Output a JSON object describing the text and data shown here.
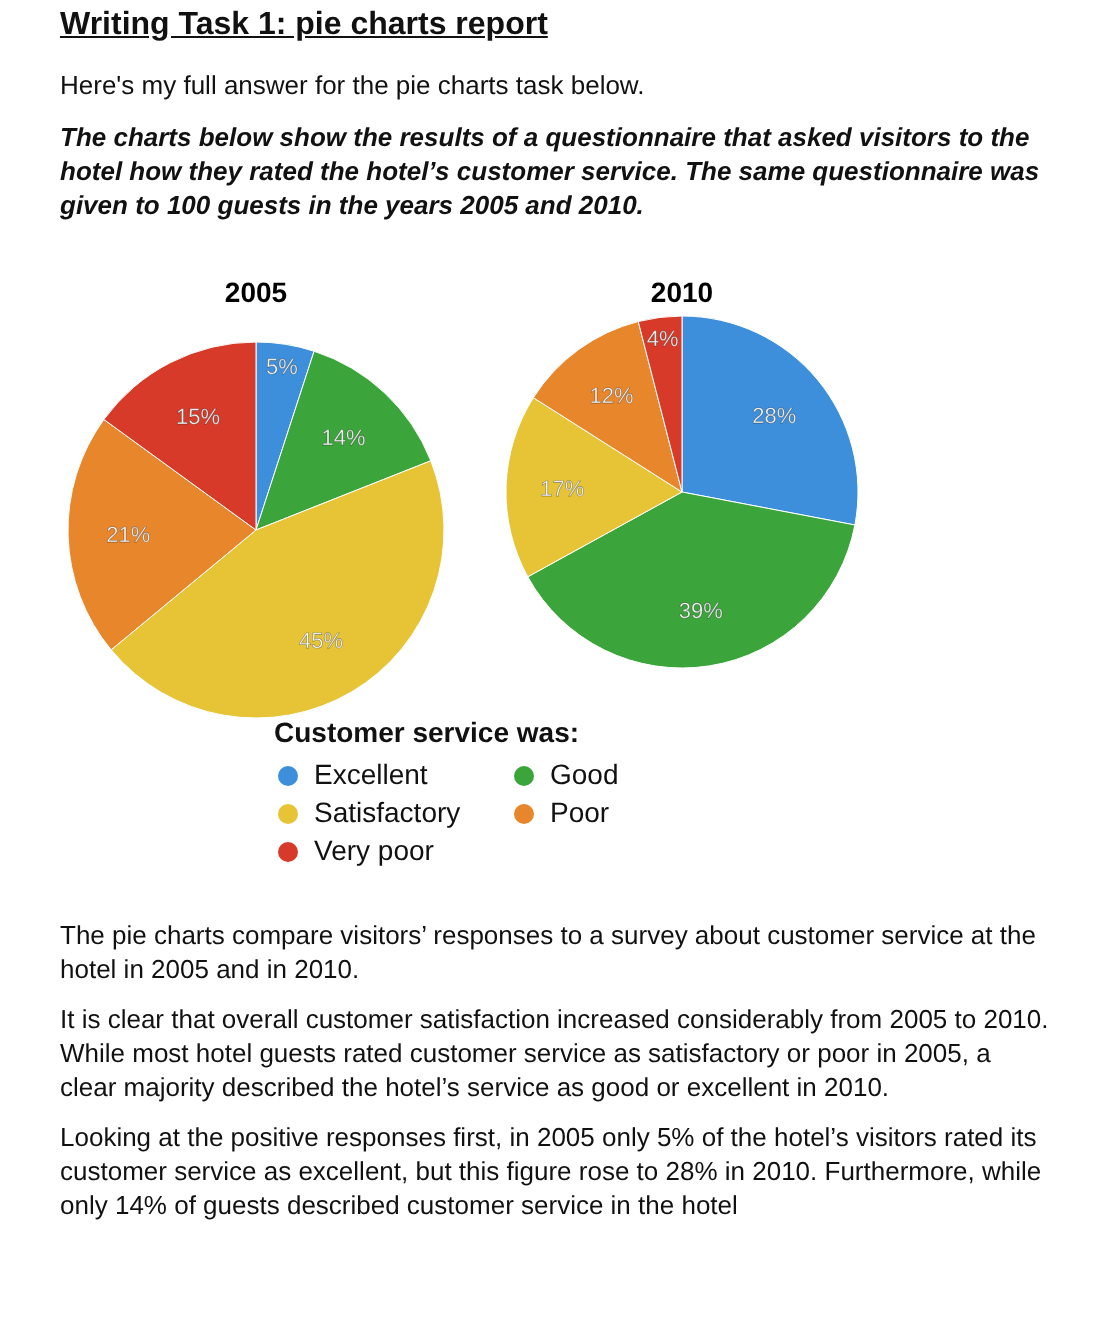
{
  "chart_data": [
    {
      "type": "pie",
      "title": "2005",
      "categories": [
        "Excellent",
        "Good",
        "Satisfactory",
        "Poor",
        "Very poor"
      ],
      "values": [
        5,
        14,
        45,
        21,
        15
      ],
      "value_labels": [
        "5%",
        "14%",
        "45%",
        "21%",
        "15%"
      ],
      "colors": [
        "#3d8fdc",
        "#3ba53c",
        "#e6c436",
        "#e8862c",
        "#d83a2a"
      ],
      "legend": "bottom",
      "legend_title": "Customer service was:",
      "annotations": [
        "Writing Task 1: pie charts report",
        "Here's my full answer for the pie charts task below.",
        "The charts below show the results of a questionnaire that asked visitors to the hotel how they rated the hotel’s customer service. The same questionnaire was given to 100 guests in the years 2005 and 2010."
      ]
    },
    {
      "type": "pie",
      "title": "2010",
      "categories": [
        null,
        null,
        null,
        null,
        null
      ],
      "values": [
        28,
        39,
        17,
        12,
        4
      ],
      "value_labels": [
        "28%",
        "39%",
        "17%",
        "12%",
        "4%"
      ],
      "colors": [
        "#3d8fdc",
        "#3ba53c",
        "#e6c436",
        "#e8862c",
        "#d83a2a"
      ],
      "annotations": [
        "The pie charts compare visitors’ responses to a survey about customer service at the hotel in 2005 and in 2010.",
        "It is clear that overall customer satisfaction increased considerably from 2005 to 2010. While most hotel guests rated customer service as satisfactory or poor in 2005, a clear majority described the hotel’s service as good or excellent in 2010.",
        "Looking at the positive responses first, in 2005 only 5% of the hotel’s visitors rated its customer service as excellent, but this figure rose to 28% in 2010. Furthermore, while only 14% of guests described customer service in the hotel"
      ]
    }
  ]
}
